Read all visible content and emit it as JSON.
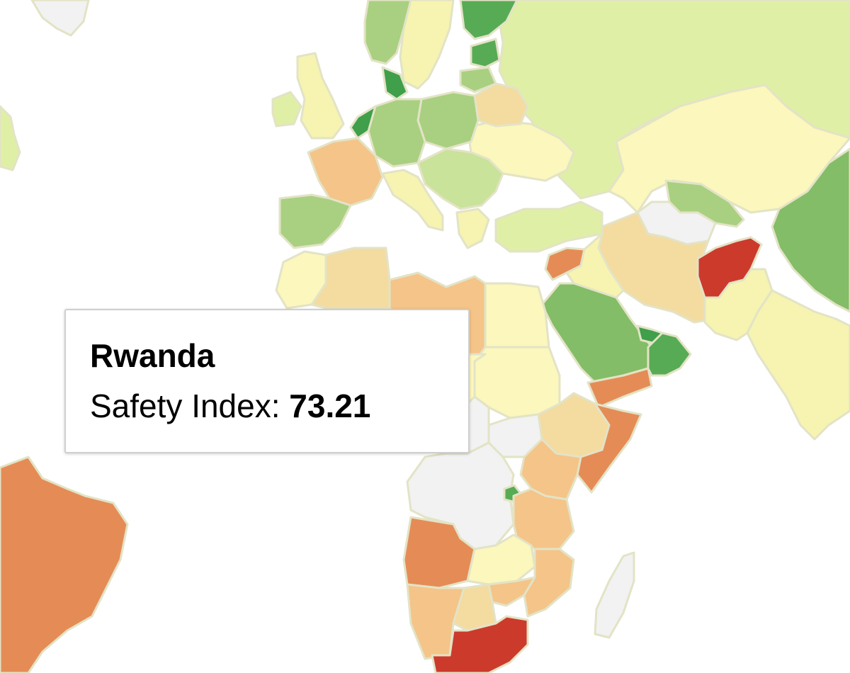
{
  "map": {
    "colors": {
      "very_high": "#3f9f4a",
      "high": "#57ab54",
      "mid_high": "#83bd67",
      "mid": "#a8d080",
      "mid_low": "#c9e39a",
      "low_mid": "#dfefa6",
      "pale_yellow": "#f6f4b0",
      "yellow": "#fbf7bd",
      "peach": "#f4dba0",
      "light_orange": "#f5c488",
      "orange": "#e58c56",
      "dark_orange": "#e07e4e",
      "red": "#cc3a2c",
      "no_data": "#f2f2f2",
      "border": "#e3e3c6"
    },
    "countries": [
      {
        "name": "Russia",
        "color_key": "low_mid"
      },
      {
        "name": "Kazakhstan",
        "color_key": "yellow"
      },
      {
        "name": "China",
        "color_key": "mid_high"
      },
      {
        "name": "India",
        "color_key": "pale_yellow"
      },
      {
        "name": "Afghanistan",
        "color_key": "red"
      },
      {
        "name": "Pakistan",
        "color_key": "pale_yellow"
      },
      {
        "name": "Iran",
        "color_key": "peach"
      },
      {
        "name": "Turkmenistan",
        "color_key": "no_data"
      },
      {
        "name": "Uzbekistan",
        "color_key": "mid"
      },
      {
        "name": "Saudi Arabia",
        "color_key": "mid_high"
      },
      {
        "name": "Yemen",
        "color_key": "orange"
      },
      {
        "name": "Oman",
        "color_key": "high"
      },
      {
        "name": "UAE",
        "color_key": "very_high"
      },
      {
        "name": "Syria",
        "color_key": "orange"
      },
      {
        "name": "Iraq",
        "color_key": "pale_yellow"
      },
      {
        "name": "Turkey",
        "color_key": "low_mid"
      },
      {
        "name": "Ukraine",
        "color_key": "yellow"
      },
      {
        "name": "Belarus",
        "color_key": "peach"
      },
      {
        "name": "Poland",
        "color_key": "mid"
      },
      {
        "name": "Germany",
        "color_key": "mid"
      },
      {
        "name": "France",
        "color_key": "light_orange"
      },
      {
        "name": "Spain",
        "color_key": "mid"
      },
      {
        "name": "Italy",
        "color_key": "pale_yellow"
      },
      {
        "name": "United Kingdom",
        "color_key": "pale_yellow"
      },
      {
        "name": "Ireland",
        "color_key": "low_mid"
      },
      {
        "name": "Norway",
        "color_key": "mid"
      },
      {
        "name": "Sweden",
        "color_key": "pale_yellow"
      },
      {
        "name": "Finland",
        "color_key": "high"
      },
      {
        "name": "Balkans",
        "color_key": "mid_low"
      },
      {
        "name": "Greece",
        "color_key": "pale_yellow"
      },
      {
        "name": "Morocco",
        "color_key": "yellow"
      },
      {
        "name": "Algeria",
        "color_key": "peach"
      },
      {
        "name": "Libya",
        "color_key": "light_orange"
      },
      {
        "name": "Egypt",
        "color_key": "yellow"
      },
      {
        "name": "Sudan",
        "color_key": "yellow"
      },
      {
        "name": "Chad",
        "color_key": "yellow"
      },
      {
        "name": "Ethiopia",
        "color_key": "peach"
      },
      {
        "name": "Somalia",
        "color_key": "orange"
      },
      {
        "name": "Kenya",
        "color_key": "light_orange"
      },
      {
        "name": "Tanzania",
        "color_key": "light_orange"
      },
      {
        "name": "DR Congo",
        "color_key": "no_data"
      },
      {
        "name": "Central African Republic",
        "color_key": "no_data"
      },
      {
        "name": "South Sudan",
        "color_key": "no_data"
      },
      {
        "name": "Rwanda",
        "color_key": "high"
      },
      {
        "name": "Angola",
        "color_key": "orange"
      },
      {
        "name": "Zambia",
        "color_key": "yellow"
      },
      {
        "name": "Mozambique",
        "color_key": "light_orange"
      },
      {
        "name": "Zimbabwe",
        "color_key": "light_orange"
      },
      {
        "name": "Namibia",
        "color_key": "light_orange"
      },
      {
        "name": "Botswana",
        "color_key": "peach"
      },
      {
        "name": "South Africa",
        "color_key": "red"
      },
      {
        "name": "Madagascar",
        "color_key": "no_data"
      },
      {
        "name": "Brazil",
        "color_key": "orange"
      },
      {
        "name": "Greenland",
        "color_key": "no_data"
      }
    ]
  },
  "tooltip": {
    "country": "Rwanda",
    "label": "Safety Index: ",
    "value": "73.21"
  }
}
